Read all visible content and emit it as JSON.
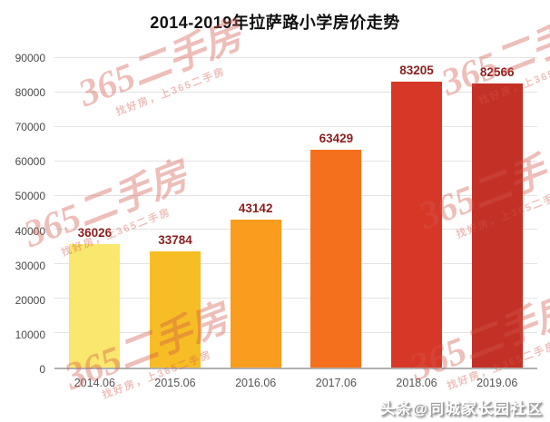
{
  "chart_data": {
    "type": "bar",
    "title": "2014-2019年拉萨路小学房价走势",
    "categories": [
      "2014.06",
      "2015.06",
      "2016.06",
      "2017.06",
      "2018.06",
      "2019.06"
    ],
    "values": [
      36026,
      33784,
      43142,
      63429,
      83205,
      82566
    ],
    "bar_colors": [
      "#fae76d",
      "#f6bd25",
      "#fa9c1d",
      "#f5701d",
      "#d63727",
      "#c33026"
    ],
    "value_label_color": "#8b1e1e",
    "xlabel": "",
    "ylabel": "",
    "ylim": [
      0,
      90000
    ],
    "ytick_step": 10000,
    "yticks": [
      0,
      10000,
      20000,
      30000,
      40000,
      50000,
      60000,
      70000,
      80000,
      90000
    ],
    "grid": true,
    "legend": false
  },
  "watermark": {
    "brand": "365二手房",
    "tagline": "找好房，上365二手房"
  },
  "footer": {
    "credit": "头条@同城家长园社区"
  }
}
